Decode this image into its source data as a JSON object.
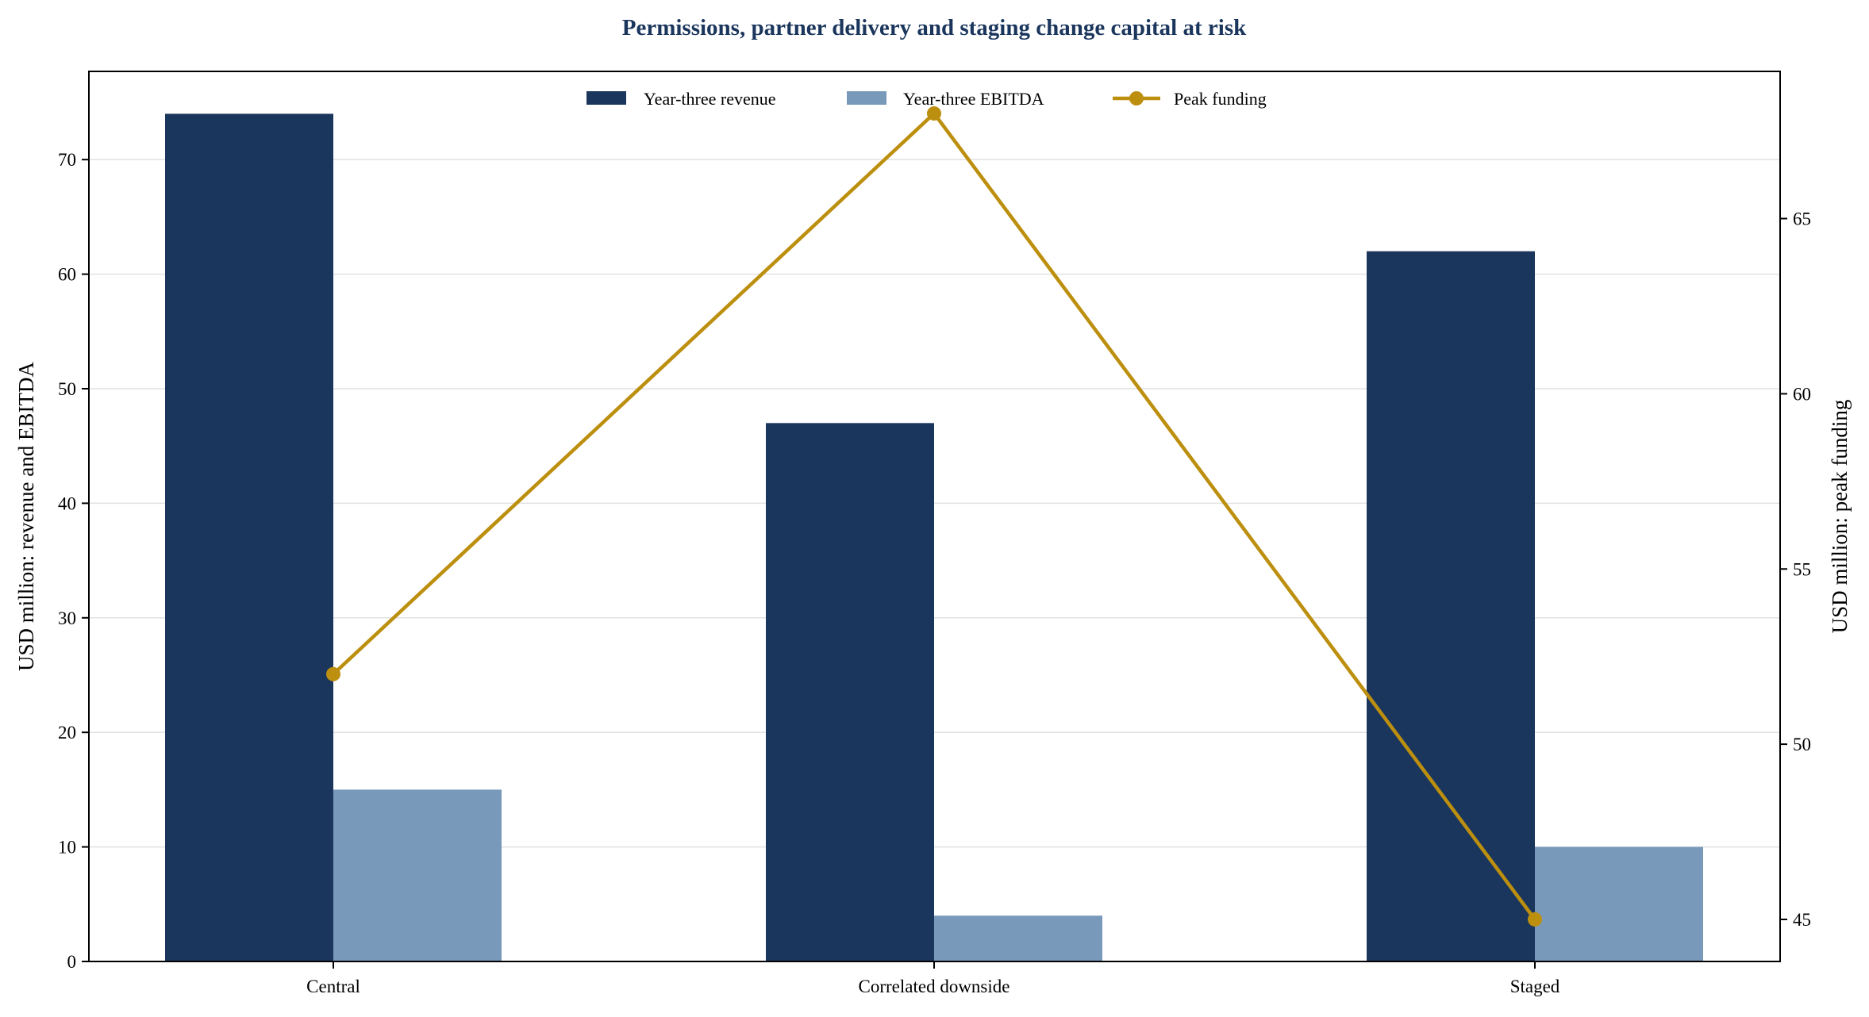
{
  "chart_data": {
    "type": "bar",
    "title": "Permissions, partner delivery and staging change capital at risk",
    "categories": [
      "Central",
      "Correlated downside",
      "Staged"
    ],
    "series": [
      {
        "name": "Year-three revenue",
        "kind": "bar",
        "axis": "left",
        "color": "#1b365d",
        "values": [
          74,
          47,
          62
        ]
      },
      {
        "name": "Year-three EBITDA",
        "kind": "bar",
        "axis": "left",
        "color": "#7899ba",
        "values": [
          15,
          4,
          10
        ]
      },
      {
        "name": "Peak funding",
        "kind": "line",
        "axis": "right",
        "color": "#bd8f0f",
        "values": [
          52,
          68,
          45
        ]
      }
    ],
    "ylabel": "USD million: revenue and EBITDA",
    "ylabel_right": "USD million: peak funding",
    "ylim": [
      0,
      77.7
    ],
    "ylim_right": [
      43.8,
      69.2
    ],
    "yticks": [
      0,
      10,
      20,
      30,
      40,
      50,
      60,
      70
    ],
    "yticks_right": [
      45,
      50,
      55,
      60,
      65
    ],
    "grid": "horizontal",
    "legend": "top-center",
    "title_color": "#1b365d"
  }
}
